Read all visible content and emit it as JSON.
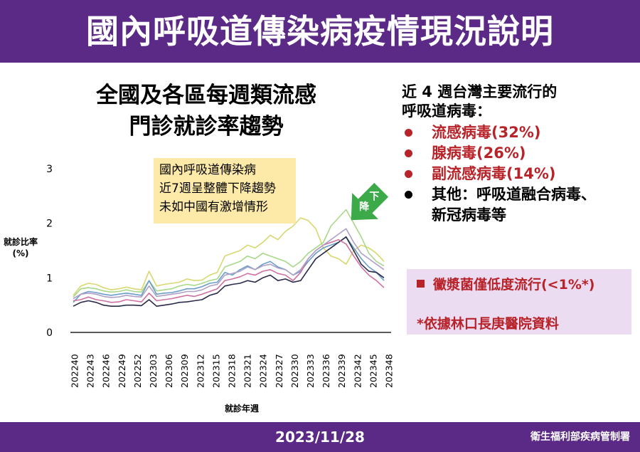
{
  "header": {
    "title": "國內呼吸道傳染病疫情現況說明"
  },
  "chart_title": {
    "line1": "全國及各區每週類流感",
    "line2": "門診就診率趨勢"
  },
  "callout": {
    "line1": "國內呼吸道傳染病",
    "line2": "近7週呈整體下降趨勢",
    "line3": "未如中國有激增情形"
  },
  "arrow_label": {
    "char1": "下",
    "char2": "降"
  },
  "colors": {
    "header": "#5b2a86",
    "arrow": "#3daa4a",
    "red_text": "#b8232a",
    "callout_bg": "#fdeaa8",
    "note_bg": "#ecdcf2"
  },
  "chart_data": {
    "type": "line",
    "ylabel": "就診比率\n(%)",
    "xlabel": "就診年週",
    "ylim": [
      0,
      3
    ],
    "yticks": [
      "0",
      "1",
      "2",
      "3"
    ],
    "xtick_labels": [
      "202240",
      "202243",
      "202246",
      "202249",
      "202252",
      "202303",
      "202306",
      "202309",
      "202312",
      "202315",
      "202318",
      "202321",
      "202324",
      "202327",
      "202330",
      "202333",
      "202336",
      "202339",
      "202342",
      "202345",
      "202348"
    ],
    "x_start": "202240",
    "series": [
      {
        "color": "#d8d870",
        "values": [
          0.68,
          0.85,
          0.9,
          0.88,
          0.82,
          0.78,
          0.8,
          0.83,
          0.8,
          0.78,
          1.12,
          0.85,
          0.88,
          0.9,
          0.92,
          0.98,
          0.95,
          0.96,
          1.05,
          1.1,
          1.4,
          1.45,
          1.5,
          1.6,
          1.55,
          1.65,
          1.78,
          1.7,
          1.85,
          1.95,
          2.1,
          2.05,
          1.9,
          1.55,
          1.4,
          1.35,
          1.25,
          1.5,
          1.6,
          1.55,
          1.45,
          1.3
        ]
      },
      {
        "color": "#a8d88a",
        "values": [
          0.65,
          0.8,
          0.82,
          0.8,
          0.76,
          0.74,
          0.75,
          0.78,
          0.75,
          0.74,
          0.95,
          0.76,
          0.78,
          0.8,
          0.85,
          0.88,
          0.86,
          0.9,
          0.95,
          0.98,
          1.2,
          1.25,
          1.3,
          1.4,
          1.35,
          1.45,
          1.4,
          1.35,
          1.3,
          1.2,
          1.3,
          1.45,
          1.55,
          1.65,
          1.95,
          2.1,
          2.25,
          2.0,
          1.75,
          1.45,
          1.3,
          1.22
        ]
      },
      {
        "color": "#6a9ec8",
        "values": [
          0.55,
          0.7,
          0.75,
          0.73,
          0.7,
          0.68,
          0.7,
          0.72,
          0.7,
          0.68,
          0.95,
          0.7,
          0.72,
          0.73,
          0.76,
          0.8,
          0.8,
          0.84,
          0.9,
          0.92,
          1.1,
          1.05,
          1.15,
          1.22,
          1.15,
          1.25,
          1.3,
          1.2,
          1.15,
          1.05,
          1.12,
          1.3,
          1.45,
          1.55,
          1.6,
          1.65,
          1.75,
          1.55,
          1.35,
          1.2,
          1.1,
          0.95
        ]
      },
      {
        "color": "#2a2a4a",
        "values": [
          0.48,
          0.55,
          0.58,
          0.55,
          0.5,
          0.48,
          0.48,
          0.5,
          0.5,
          0.49,
          0.6,
          0.48,
          0.5,
          0.52,
          0.55,
          0.56,
          0.58,
          0.6,
          0.68,
          0.72,
          0.85,
          0.88,
          0.9,
          0.95,
          0.92,
          1.0,
          1.05,
          0.95,
          0.98,
          0.92,
          0.95,
          1.15,
          1.35,
          1.45,
          1.55,
          1.65,
          1.75,
          1.5,
          1.25,
          1.12,
          1.1,
          1.0
        ]
      },
      {
        "color": "#d070a0",
        "values": [
          0.58,
          0.6,
          0.65,
          0.6,
          0.58,
          0.55,
          0.56,
          0.6,
          0.58,
          0.56,
          0.72,
          0.58,
          0.6,
          0.62,
          0.65,
          0.68,
          0.66,
          0.7,
          0.75,
          0.8,
          0.95,
          0.98,
          1.02,
          1.08,
          1.05,
          1.12,
          1.15,
          1.08,
          1.05,
          0.95,
          1.1,
          1.35,
          1.5,
          1.6,
          1.65,
          1.7,
          1.62,
          1.4,
          1.2,
          1.05,
          0.95,
          0.82
        ]
      },
      {
        "color": "#b0a0c8",
        "values": [
          0.62,
          0.7,
          0.72,
          0.7,
          0.66,
          0.64,
          0.65,
          0.68,
          0.66,
          0.65,
          0.85,
          0.66,
          0.68,
          0.7,
          0.72,
          0.75,
          0.75,
          0.78,
          0.85,
          0.88,
          1.05,
          1.08,
          1.12,
          1.2,
          1.15,
          1.22,
          1.25,
          1.18,
          1.15,
          1.05,
          1.15,
          1.35,
          1.5,
          1.6,
          1.7,
          1.8,
          1.9,
          1.65,
          1.45,
          1.35,
          1.25,
          1.15
        ]
      }
    ]
  },
  "panel": {
    "heading_line1": "近 4 週台灣主要流行的",
    "heading_line2": "呼吸道病毒：",
    "items": [
      {
        "text": "流感病毒(32%)"
      },
      {
        "text": "腺病毒(26%)"
      },
      {
        "text": "副流感病毒(14%)"
      },
      {
        "text": "其他：呼吸道融合病毒、",
        "text2": "新冠病毒等"
      }
    ]
  },
  "note": {
    "line1": "黴漿菌僅低度流行(<1%*)",
    "line2": "*依據林口長庚醫院資料"
  },
  "footer": {
    "date": "2023/11/28",
    "org": "衛生福利部疾病管制署"
  }
}
